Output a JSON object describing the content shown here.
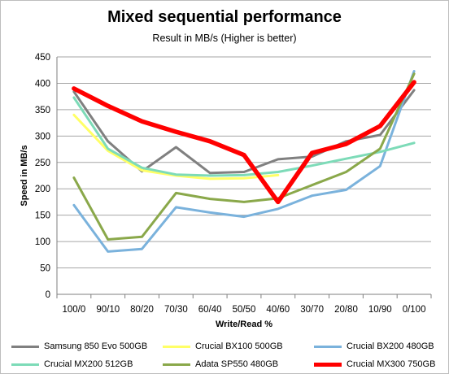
{
  "chart_data": {
    "type": "line",
    "title": "Mixed sequential performance",
    "subtitle": "Result in MB/s (Higher is better)",
    "xlabel": "Write/Read %",
    "ylabel": "Speed in MB/s",
    "categories": [
      "100/0",
      "90/10",
      "80/20",
      "70/30",
      "60/40",
      "50/50",
      "40/60",
      "30/70",
      "20/80",
      "10/90",
      "0/100"
    ],
    "ylim": [
      0,
      450
    ],
    "yticks": [
      "0",
      "50",
      "100",
      "150",
      "200",
      "250",
      "300",
      "350",
      "400",
      "450"
    ],
    "grid": true,
    "legend_position": "bottom",
    "series": [
      {
        "name": "Samsung 850 Evo 500GB",
        "color": "#808080",
        "values": [
          384,
          290,
          233,
          279,
          230,
          232,
          256,
          261,
          290,
          302,
          387
        ]
      },
      {
        "name": "Crucial BX100 500GB",
        "color": "#ffff66",
        "values": [
          340,
          272,
          235,
          225,
          219,
          220,
          226,
          null,
          null,
          null,
          null
        ]
      },
      {
        "name": "Crucial BX200 480GB",
        "color": "#7ab2dc",
        "values": [
          169,
          81,
          86,
          165,
          155,
          147,
          162,
          187,
          198,
          243,
          423
        ]
      },
      {
        "name": "Crucial MX200 512GB",
        "color": "#7ddbb8",
        "values": [
          373,
          276,
          240,
          227,
          225,
          226,
          232,
          244,
          257,
          270,
          287
        ]
      },
      {
        "name": "Adata SP550 480GB",
        "color": "#8aa84a",
        "values": [
          221,
          104,
          109,
          192,
          181,
          175,
          182,
          207,
          232,
          276,
          418
        ]
      },
      {
        "name": "Crucial MX300 750GB",
        "color": "#ff0000",
        "values": [
          390,
          357,
          328,
          308,
          290,
          264,
          175,
          268,
          285,
          319,
          402
        ]
      }
    ]
  }
}
